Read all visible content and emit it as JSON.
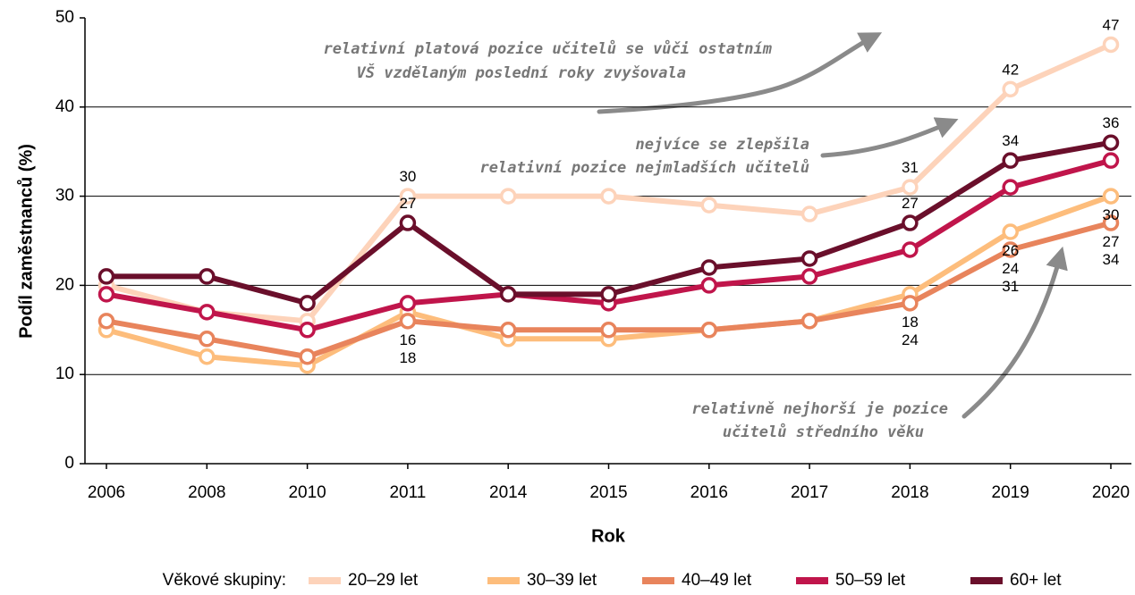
{
  "chart_data": {
    "type": "line",
    "y_label": "Podíl zaměstnanců (%)",
    "x_label": "Rok",
    "categories": [
      "2006",
      "2008",
      "2010",
      "2011",
      "2014",
      "2015",
      "2016",
      "2017",
      "2018",
      "2019",
      "2020"
    ],
    "ylim": [
      0,
      50
    ],
    "yticks": [
      0,
      10,
      20,
      30,
      40,
      50
    ],
    "grid": true,
    "legend_title": "Věkové skupiny:",
    "legend": "bottom",
    "series": [
      {
        "name": "20–29 let",
        "color": "#fdd3ba",
        "values": [
          20,
          17,
          16,
          30,
          30,
          30,
          29,
          28,
          31,
          42,
          47
        ],
        "label_points": [
          3,
          8,
          9,
          10
        ],
        "label_position": "above"
      },
      {
        "name": "30–39 let",
        "color": "#fdbd7c",
        "values": [
          15,
          12,
          11,
          17,
          14,
          14,
          15,
          16,
          19,
          26,
          30
        ],
        "label_points": [
          9,
          10
        ],
        "label_position": "below"
      },
      {
        "name": "40–49 let",
        "color": "#e8845c",
        "values": [
          16,
          14,
          12,
          16,
          15,
          15,
          15,
          16,
          18,
          24,
          27
        ],
        "label_points": [
          3,
          8,
          9,
          10
        ],
        "label_position": "below"
      },
      {
        "name": "50–59 let",
        "color": "#c0154b",
        "values": [
          19,
          17,
          15,
          18,
          19,
          18,
          20,
          21,
          24,
          31,
          34
        ],
        "label_points": [
          3,
          8,
          9,
          10
        ],
        "label_position": "below"
      },
      {
        "name": "60+ let",
        "color": "#6a0f2b",
        "values": [
          21,
          21,
          18,
          27,
          19,
          19,
          22,
          23,
          27,
          34,
          36
        ],
        "label_points": [
          3,
          8,
          9,
          10
        ],
        "label_position": "above"
      }
    ],
    "annotations": [
      {
        "lines": [
          "relativní platová pozice učitelů se vůči ostatním",
          "VŠ vzdělaným poslední roky zvyšovala"
        ]
      },
      {
        "lines": [
          "nejvíce se zlepšila",
          "relativní pozice nejmladších učitelů"
        ]
      },
      {
        "lines": [
          "relativně nejhorší je pozice",
          "učitelů středního věku"
        ]
      }
    ]
  }
}
